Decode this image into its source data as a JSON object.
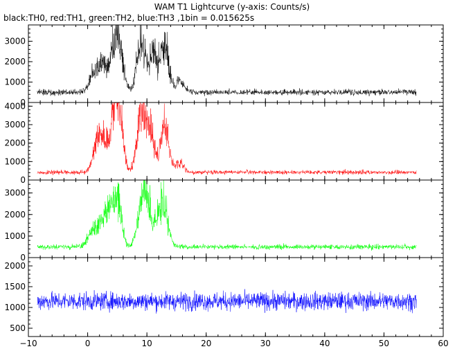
{
  "chart_data": {
    "type": "line",
    "title": "WAM T1 Lightcurve (y-axis: Counts/s)",
    "subtitle": "black:TH0, red:TH1, green:TH2, blue:TH3 ,1bin = 0.015625s",
    "xlim": [
      -10,
      60
    ],
    "x_ticks": [
      -10,
      0,
      10,
      20,
      30,
      40,
      50,
      60
    ],
    "x_data_range": [
      -8.5,
      55.5
    ],
    "grid": false,
    "panels": [
      {
        "name": "TH0",
        "color": "#000000",
        "ylim": [
          0,
          3800
        ],
        "y_ticks": [
          0,
          1000,
          2000,
          3000
        ],
        "baseline": 500,
        "noise": 180,
        "bursts": [
          {
            "x": 1.0,
            "y": 1600
          },
          {
            "x": 2.5,
            "y": 2300
          },
          {
            "x": 4.5,
            "y": 3100
          },
          {
            "x": 5.5,
            "y": 2700
          },
          {
            "x": 9.0,
            "y": 3600
          },
          {
            "x": 11.0,
            "y": 2900
          },
          {
            "x": 13.0,
            "y": 3400
          },
          {
            "x": 15.5,
            "y": 1200
          }
        ]
      },
      {
        "name": "TH1",
        "color": "#ff0000",
        "ylim": [
          0,
          4200
        ],
        "y_ticks": [
          0,
          1000,
          2000,
          3000,
          4000
        ],
        "baseline": 420,
        "noise": 150,
        "bursts": [
          {
            "x": 1.5,
            "y": 1900
          },
          {
            "x": 2.5,
            "y": 2600
          },
          {
            "x": 4.5,
            "y": 3900
          },
          {
            "x": 5.3,
            "y": 3500
          },
          {
            "x": 9.0,
            "y": 4100
          },
          {
            "x": 10.5,
            "y": 3300
          },
          {
            "x": 13.0,
            "y": 3600
          },
          {
            "x": 15.5,
            "y": 1100
          }
        ]
      },
      {
        "name": "TH2",
        "color": "#00ff00",
        "ylim": [
          0,
          3600
        ],
        "y_ticks": [
          0,
          1000,
          2000,
          3000
        ],
        "baseline": 500,
        "noise": 150,
        "bursts": [
          {
            "x": 0.5,
            "y": 1200
          },
          {
            "x": 2.0,
            "y": 1700
          },
          {
            "x": 3.5,
            "y": 2500
          },
          {
            "x": 5.0,
            "y": 3400
          },
          {
            "x": 9.0,
            "y": 2600
          },
          {
            "x": 10.0,
            "y": 3100
          },
          {
            "x": 12.0,
            "y": 2000
          },
          {
            "x": 13.0,
            "y": 2400
          }
        ]
      },
      {
        "name": "TH3",
        "color": "#0000ff",
        "ylim": [
          300,
          2200
        ],
        "y_ticks": [
          500,
          1000,
          1500,
          2000
        ],
        "baseline": 1150,
        "noise": 280,
        "bursts": []
      }
    ]
  }
}
